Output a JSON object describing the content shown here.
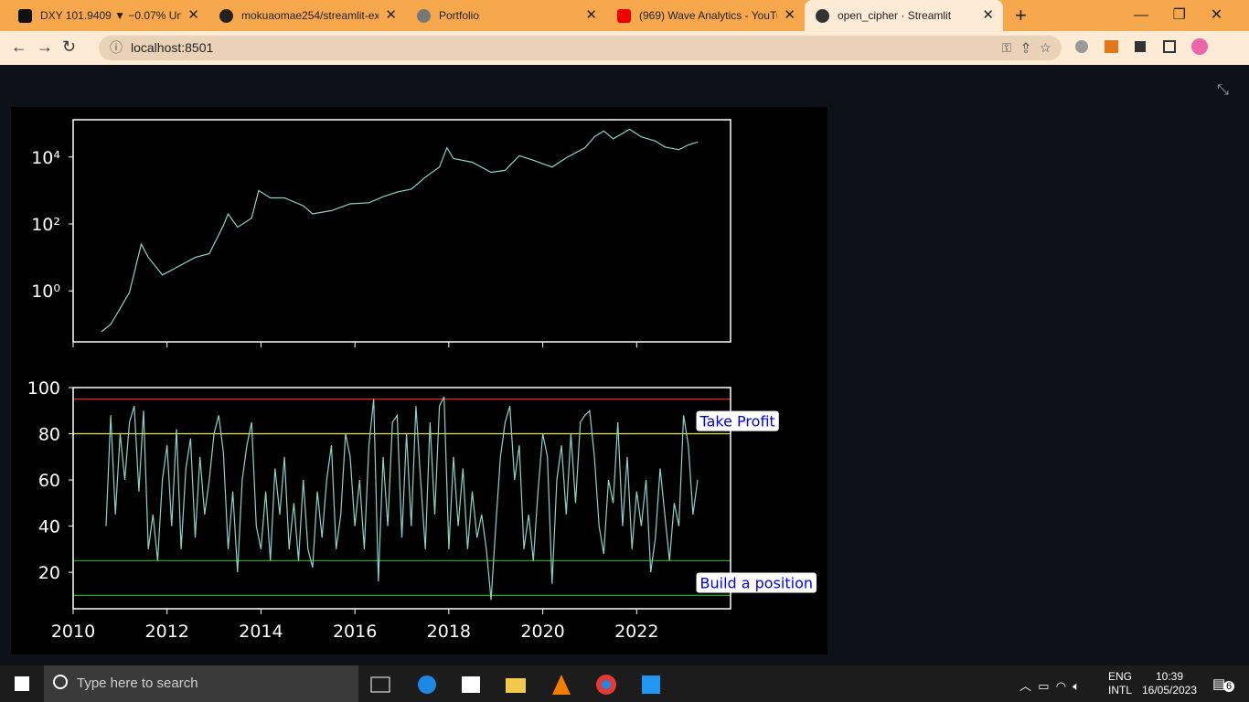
{
  "browser": {
    "tabs": [
      "DXY 101.9409 ▼ −0.07% Un",
      "mokuaomae254/streamlit-ex",
      "Portfolio",
      "(969) Wave Analytics - YouTu",
      "open_cipher · Streamlit"
    ],
    "address": "localhost:8501"
  },
  "chart_data": [
    {
      "type": "line",
      "yscale": "log",
      "color": "#8dd3c7",
      "show_xtick_labels": false,
      "x": [
        2010.6,
        2010.8,
        2011.0,
        2011.2,
        2011.45,
        2011.6,
        2011.9,
        2012.2,
        2012.6,
        2012.9,
        2013.2,
        2013.3,
        2013.5,
        2013.8,
        2013.95,
        2014.2,
        2014.5,
        2014.9,
        2015.1,
        2015.5,
        2015.9,
        2016.3,
        2016.6,
        2016.9,
        2017.2,
        2017.5,
        2017.8,
        2017.96,
        2018.1,
        2018.5,
        2018.9,
        2019.2,
        2019.5,
        2019.8,
        2020.2,
        2020.5,
        2020.9,
        2021.1,
        2021.3,
        2021.5,
        2021.85,
        2022.1,
        2022.4,
        2022.6,
        2022.9,
        2023.1,
        2023.3
      ],
      "values": [
        0.06,
        0.1,
        0.3,
        0.9,
        25,
        10,
        3,
        5,
        10,
        13,
        90,
        200,
        80,
        150,
        1000,
        600,
        600,
        350,
        200,
        250,
        400,
        430,
        650,
        900,
        1100,
        2500,
        5000,
        19000,
        9000,
        7000,
        3500,
        4000,
        11000,
        8000,
        5000,
        9500,
        19000,
        40000,
        60000,
        35000,
        67000,
        40000,
        30000,
        20000,
        16500,
        23000,
        28000
      ],
      "xlim": [
        2010,
        2024
      ],
      "xticks": [
        2010,
        2012,
        2014,
        2016,
        2018,
        2020,
        2022
      ],
      "ylim": [
        0.03,
        130000
      ],
      "yticks": [
        {
          "value": 1,
          "label": "10⁰"
        },
        {
          "value": 100,
          "label": "10²"
        },
        {
          "value": 10000,
          "label": "10⁴"
        }
      ]
    },
    {
      "type": "line",
      "color": "#8dd3c7",
      "show_xtick_labels": true,
      "x": [
        2010.7,
        2010.8,
        2010.9,
        2011.0,
        2011.1,
        2011.2,
        2011.3,
        2011.4,
        2011.5,
        2011.6,
        2011.7,
        2011.8,
        2011.9,
        2012.0,
        2012.1,
        2012.2,
        2012.3,
        2012.4,
        2012.5,
        2012.6,
        2012.7,
        2012.8,
        2012.9,
        2013.0,
        2013.1,
        2013.2,
        2013.3,
        2013.4,
        2013.5,
        2013.6,
        2013.7,
        2013.8,
        2013.9,
        2014.0,
        2014.1,
        2014.2,
        2014.3,
        2014.4,
        2014.5,
        2014.6,
        2014.7,
        2014.8,
        2014.9,
        2015.0,
        2015.1,
        2015.2,
        2015.3,
        2015.4,
        2015.5,
        2015.6,
        2015.7,
        2015.8,
        2015.9,
        2016.0,
        2016.1,
        2016.2,
        2016.3,
        2016.4,
        2016.5,
        2016.6,
        2016.7,
        2016.8,
        2016.9,
        2017.0,
        2017.1,
        2017.2,
        2017.3,
        2017.4,
        2017.5,
        2017.6,
        2017.7,
        2017.8,
        2017.9,
        2018.0,
        2018.1,
        2018.2,
        2018.3,
        2018.4,
        2018.5,
        2018.6,
        2018.7,
        2018.8,
        2018.9,
        2019.0,
        2019.1,
        2019.2,
        2019.3,
        2019.4,
        2019.5,
        2019.6,
        2019.7,
        2019.8,
        2019.9,
        2020.0,
        2020.1,
        2020.2,
        2020.3,
        2020.4,
        2020.5,
        2020.6,
        2020.7,
        2020.8,
        2020.9,
        2021.0,
        2021.1,
        2021.2,
        2021.3,
        2021.4,
        2021.5,
        2021.6,
        2021.7,
        2021.8,
        2021.9,
        2022.0,
        2022.1,
        2022.2,
        2022.3,
        2022.4,
        2022.5,
        2022.6,
        2022.7,
        2022.8,
        2022.9,
        2023.0,
        2023.1,
        2023.2,
        2023.3
      ],
      "values": [
        40,
        88,
        45,
        80,
        60,
        85,
        92,
        55,
        90,
        30,
        45,
        25,
        60,
        75,
        40,
        82,
        30,
        65,
        78,
        35,
        70,
        45,
        60,
        80,
        88,
        72,
        30,
        55,
        20,
        60,
        75,
        85,
        40,
        30,
        55,
        25,
        65,
        45,
        70,
        30,
        50,
        25,
        60,
        30,
        22,
        55,
        35,
        60,
        75,
        30,
        45,
        80,
        70,
        40,
        60,
        30,
        75,
        95,
        16,
        70,
        40,
        85,
        88,
        35,
        80,
        40,
        92,
        60,
        30,
        85,
        45,
        92,
        96,
        30,
        70,
        40,
        65,
        30,
        55,
        35,
        45,
        30,
        8,
        40,
        70,
        85,
        92,
        60,
        75,
        30,
        45,
        25,
        55,
        80,
        70,
        15,
        60,
        75,
        45,
        80,
        50,
        85,
        88,
        90,
        70,
        40,
        28,
        60,
        50,
        85,
        40,
        70,
        30,
        55,
        40,
        60,
        20,
        35,
        65,
        45,
        25,
        50,
        40,
        88,
        75,
        45,
        60
      ],
      "xlim": [
        2010,
        2024
      ],
      "xticks": [
        2010,
        2012,
        2014,
        2016,
        2018,
        2020,
        2022
      ],
      "ylim": [
        4.2,
        100
      ],
      "yticks": [
        20,
        40,
        60,
        80,
        100
      ],
      "hlines": [
        {
          "value": 95,
          "color": "#e8231b"
        },
        {
          "value": 80,
          "color": "#e8e82a"
        },
        {
          "value": 25,
          "color": "#1fa81f"
        },
        {
          "value": 10,
          "color": "#1fa81f"
        }
      ],
      "annotations": [
        {
          "text": "Take Profit",
          "x": 2023.27,
          "y": 85.5
        },
        {
          "text": "Build a position",
          "x": 2023.27,
          "y": 15.5
        }
      ]
    }
  ],
  "taskbar": {
    "search": "Type here to search",
    "language": "ENG",
    "layout": "INTL",
    "time": "10:39",
    "date": "16/05/2023",
    "notifications": 6
  }
}
